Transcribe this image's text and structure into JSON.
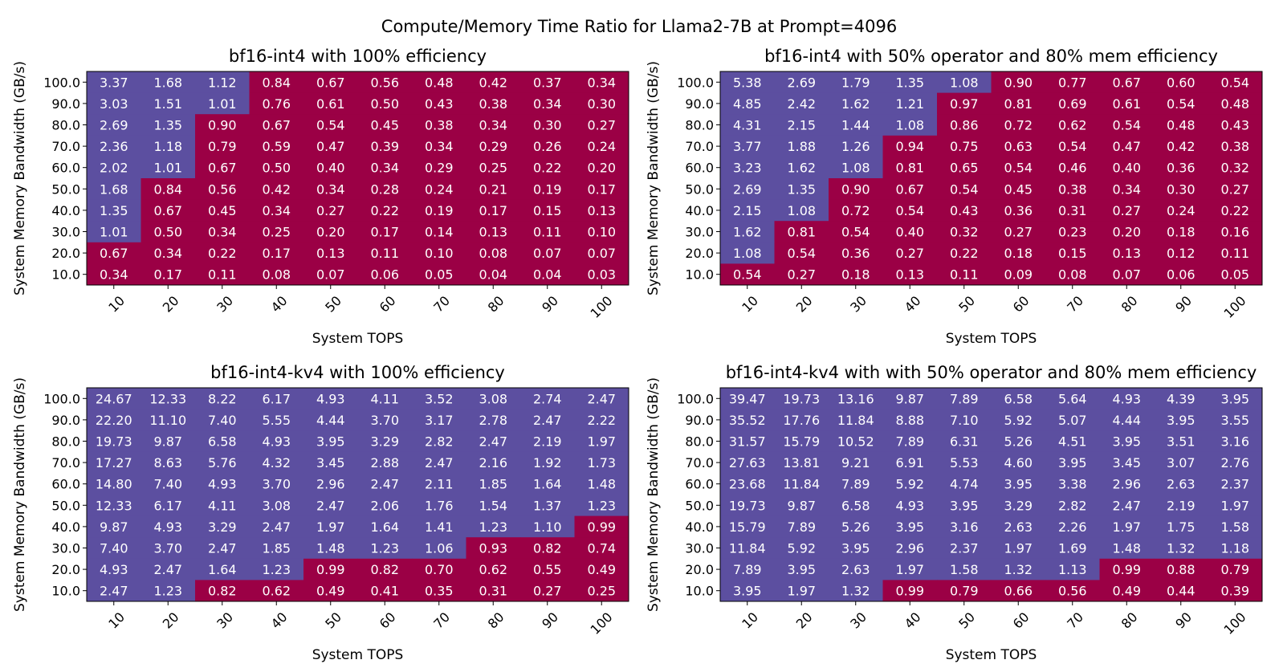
{
  "chart_data": {
    "type": "heatmap",
    "suptitle": "Compute/Memory Time Ratio for Llama2-7B at Prompt=4096",
    "colors": {
      "compute_bound": "#5c4fa0",
      "memory_bound": "#9b0045",
      "cell_text": "#ffffff"
    },
    "threshold": 1.0,
    "panels": [
      {
        "title": "bf16-int4 with 100% efficiency",
        "xlabel": "System TOPS",
        "ylabel": "System Memory Bandwidth (GB/s)",
        "x": [
          "10",
          "20",
          "30",
          "40",
          "50",
          "60",
          "70",
          "80",
          "90",
          "100"
        ],
        "y": [
          "100.0",
          "90.0",
          "80.0",
          "70.0",
          "60.0",
          "50.0",
          "40.0",
          "30.0",
          "20.0",
          "10.0"
        ],
        "values": [
          [
            "3.37",
            "1.68",
            "1.12",
            "0.84",
            "0.67",
            "0.56",
            "0.48",
            "0.42",
            "0.37",
            "0.34"
          ],
          [
            "3.03",
            "1.51",
            "1.01",
            "0.76",
            "0.61",
            "0.50",
            "0.43",
            "0.38",
            "0.34",
            "0.30"
          ],
          [
            "2.69",
            "1.35",
            "0.90",
            "0.67",
            "0.54",
            "0.45",
            "0.38",
            "0.34",
            "0.30",
            "0.27"
          ],
          [
            "2.36",
            "1.18",
            "0.79",
            "0.59",
            "0.47",
            "0.39",
            "0.34",
            "0.29",
            "0.26",
            "0.24"
          ],
          [
            "2.02",
            "1.01",
            "0.67",
            "0.50",
            "0.40",
            "0.34",
            "0.29",
            "0.25",
            "0.22",
            "0.20"
          ],
          [
            "1.68",
            "0.84",
            "0.56",
            "0.42",
            "0.34",
            "0.28",
            "0.24",
            "0.21",
            "0.19",
            "0.17"
          ],
          [
            "1.35",
            "0.67",
            "0.45",
            "0.34",
            "0.27",
            "0.22",
            "0.19",
            "0.17",
            "0.15",
            "0.13"
          ],
          [
            "1.01",
            "0.50",
            "0.34",
            "0.25",
            "0.20",
            "0.17",
            "0.14",
            "0.13",
            "0.11",
            "0.10"
          ],
          [
            "0.67",
            "0.34",
            "0.22",
            "0.17",
            "0.13",
            "0.11",
            "0.10",
            "0.08",
            "0.07",
            "0.07"
          ],
          [
            "0.34",
            "0.17",
            "0.11",
            "0.08",
            "0.07",
            "0.06",
            "0.05",
            "0.04",
            "0.04",
            "0.03"
          ]
        ]
      },
      {
        "title": "bf16-int4 with 50% operator and 80% mem efficiency",
        "xlabel": "System TOPS",
        "ylabel": "System Memory Bandwidth (GB/s)",
        "x": [
          "10",
          "20",
          "30",
          "40",
          "50",
          "60",
          "70",
          "80",
          "90",
          "100"
        ],
        "y": [
          "100.0",
          "90.0",
          "80.0",
          "70.0",
          "60.0",
          "50.0",
          "40.0",
          "30.0",
          "20.0",
          "10.0"
        ],
        "values": [
          [
            "5.38",
            "2.69",
            "1.79",
            "1.35",
            "1.08",
            "0.90",
            "0.77",
            "0.67",
            "0.60",
            "0.54"
          ],
          [
            "4.85",
            "2.42",
            "1.62",
            "1.21",
            "0.97",
            "0.81",
            "0.69",
            "0.61",
            "0.54",
            "0.48"
          ],
          [
            "4.31",
            "2.15",
            "1.44",
            "1.08",
            "0.86",
            "0.72",
            "0.62",
            "0.54",
            "0.48",
            "0.43"
          ],
          [
            "3.77",
            "1.88",
            "1.26",
            "0.94",
            "0.75",
            "0.63",
            "0.54",
            "0.47",
            "0.42",
            "0.38"
          ],
          [
            "3.23",
            "1.62",
            "1.08",
            "0.81",
            "0.65",
            "0.54",
            "0.46",
            "0.40",
            "0.36",
            "0.32"
          ],
          [
            "2.69",
            "1.35",
            "0.90",
            "0.67",
            "0.54",
            "0.45",
            "0.38",
            "0.34",
            "0.30",
            "0.27"
          ],
          [
            "2.15",
            "1.08",
            "0.72",
            "0.54",
            "0.43",
            "0.36",
            "0.31",
            "0.27",
            "0.24",
            "0.22"
          ],
          [
            "1.62",
            "0.81",
            "0.54",
            "0.40",
            "0.32",
            "0.27",
            "0.23",
            "0.20",
            "0.18",
            "0.16"
          ],
          [
            "1.08",
            "0.54",
            "0.36",
            "0.27",
            "0.22",
            "0.18",
            "0.15",
            "0.13",
            "0.12",
            "0.11"
          ],
          [
            "0.54",
            "0.27",
            "0.18",
            "0.13",
            "0.11",
            "0.09",
            "0.08",
            "0.07",
            "0.06",
            "0.05"
          ]
        ]
      },
      {
        "title": "bf16-int4-kv4 with 100% efficiency",
        "xlabel": "System TOPS",
        "ylabel": "System Memory Bandwidth (GB/s)",
        "x": [
          "10",
          "20",
          "30",
          "40",
          "50",
          "60",
          "70",
          "80",
          "90",
          "100"
        ],
        "y": [
          "100.0",
          "90.0",
          "80.0",
          "70.0",
          "60.0",
          "50.0",
          "40.0",
          "30.0",
          "20.0",
          "10.0"
        ],
        "values": [
          [
            "24.67",
            "12.33",
            "8.22",
            "6.17",
            "4.93",
            "4.11",
            "3.52",
            "3.08",
            "2.74",
            "2.47"
          ],
          [
            "22.20",
            "11.10",
            "7.40",
            "5.55",
            "4.44",
            "3.70",
            "3.17",
            "2.78",
            "2.47",
            "2.22"
          ],
          [
            "19.73",
            "9.87",
            "6.58",
            "4.93",
            "3.95",
            "3.29",
            "2.82",
            "2.47",
            "2.19",
            "1.97"
          ],
          [
            "17.27",
            "8.63",
            "5.76",
            "4.32",
            "3.45",
            "2.88",
            "2.47",
            "2.16",
            "1.92",
            "1.73"
          ],
          [
            "14.80",
            "7.40",
            "4.93",
            "3.70",
            "2.96",
            "2.47",
            "2.11",
            "1.85",
            "1.64",
            "1.48"
          ],
          [
            "12.33",
            "6.17",
            "4.11",
            "3.08",
            "2.47",
            "2.06",
            "1.76",
            "1.54",
            "1.37",
            "1.23"
          ],
          [
            "9.87",
            "4.93",
            "3.29",
            "2.47",
            "1.97",
            "1.64",
            "1.41",
            "1.23",
            "1.10",
            "0.99"
          ],
          [
            "7.40",
            "3.70",
            "2.47",
            "1.85",
            "1.48",
            "1.23",
            "1.06",
            "0.93",
            "0.82",
            "0.74"
          ],
          [
            "4.93",
            "2.47",
            "1.64",
            "1.23",
            "0.99",
            "0.82",
            "0.70",
            "0.62",
            "0.55",
            "0.49"
          ],
          [
            "2.47",
            "1.23",
            "0.82",
            "0.62",
            "0.49",
            "0.41",
            "0.35",
            "0.31",
            "0.27",
            "0.25"
          ]
        ]
      },
      {
        "title": "bf16-int4-kv4 with with 50% operator and 80% mem efficiency",
        "xlabel": "System TOPS",
        "ylabel": "System Memory Bandwidth (GB/s)",
        "x": [
          "10",
          "20",
          "30",
          "40",
          "50",
          "60",
          "70",
          "80",
          "90",
          "100"
        ],
        "y": [
          "100.0",
          "90.0",
          "80.0",
          "70.0",
          "60.0",
          "50.0",
          "40.0",
          "30.0",
          "20.0",
          "10.0"
        ],
        "values": [
          [
            "39.47",
            "19.73",
            "13.16",
            "9.87",
            "7.89",
            "6.58",
            "5.64",
            "4.93",
            "4.39",
            "3.95"
          ],
          [
            "35.52",
            "17.76",
            "11.84",
            "8.88",
            "7.10",
            "5.92",
            "5.07",
            "4.44",
            "3.95",
            "3.55"
          ],
          [
            "31.57",
            "15.79",
            "10.52",
            "7.89",
            "6.31",
            "5.26",
            "4.51",
            "3.95",
            "3.51",
            "3.16"
          ],
          [
            "27.63",
            "13.81",
            "9.21",
            "6.91",
            "5.53",
            "4.60",
            "3.95",
            "3.45",
            "3.07",
            "2.76"
          ],
          [
            "23.68",
            "11.84",
            "7.89",
            "5.92",
            "4.74",
            "3.95",
            "3.38",
            "2.96",
            "2.63",
            "2.37"
          ],
          [
            "19.73",
            "9.87",
            "6.58",
            "4.93",
            "3.95",
            "3.29",
            "2.82",
            "2.47",
            "2.19",
            "1.97"
          ],
          [
            "15.79",
            "7.89",
            "5.26",
            "3.95",
            "3.16",
            "2.63",
            "2.26",
            "1.97",
            "1.75",
            "1.58"
          ],
          [
            "11.84",
            "5.92",
            "3.95",
            "2.96",
            "2.37",
            "1.97",
            "1.69",
            "1.48",
            "1.32",
            "1.18"
          ],
          [
            "7.89",
            "3.95",
            "2.63",
            "1.97",
            "1.58",
            "1.32",
            "1.13",
            "0.99",
            "0.88",
            "0.79"
          ],
          [
            "3.95",
            "1.97",
            "1.32",
            "0.99",
            "0.79",
            "0.66",
            "0.56",
            "0.49",
            "0.44",
            "0.39"
          ]
        ]
      }
    ]
  }
}
